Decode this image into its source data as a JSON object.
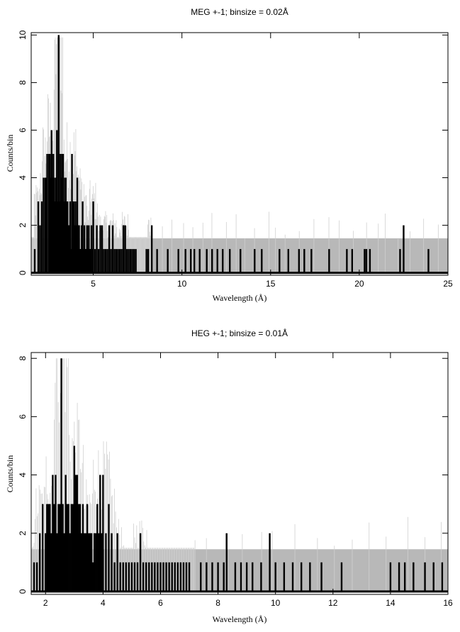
{
  "chart_data": [
    {
      "type": "line",
      "title": "MEG +-1; binsize = 0.02Å",
      "xlabel": "Wavelength (Å)",
      "ylabel": "Counts/bin",
      "xlim": [
        1.5,
        25
      ],
      "ylim": [
        -0.1,
        10.1
      ],
      "xticks": [
        5,
        10,
        15,
        20,
        25
      ],
      "yticks": [
        0,
        2,
        4,
        6,
        8,
        10
      ],
      "grid": false,
      "colors": {
        "background_band": "#b8b8b8",
        "model": "#d0d0d0",
        "data": "#000000"
      },
      "series": [
        {
          "role": "background-band",
          "band": [
            0,
            1.45
          ]
        },
        {
          "role": "data-spikes",
          "x": [
            1.7,
            1.9,
            2.0,
            2.1,
            2.2,
            2.3,
            2.35,
            2.4,
            2.5,
            2.55,
            2.6,
            2.65,
            2.7,
            2.75,
            2.8,
            2.85,
            2.9,
            2.95,
            3.0,
            3.05,
            3.1,
            3.15,
            3.2,
            3.25,
            3.3,
            3.35,
            3.4,
            3.45,
            3.5,
            3.55,
            3.6,
            3.65,
            3.7,
            3.75,
            3.8,
            3.85,
            3.9,
            3.95,
            4.0,
            4.05,
            4.1,
            4.15,
            4.2,
            4.25,
            4.3,
            4.35,
            4.4,
            4.45,
            4.5,
            4.55,
            4.6,
            4.65,
            4.7,
            4.75,
            4.8,
            4.85,
            4.9,
            4.95,
            5.0,
            5.1,
            5.2,
            5.3,
            5.4,
            5.5,
            5.6,
            5.7,
            5.8,
            5.9,
            6.0,
            6.1,
            6.2,
            6.3,
            6.4,
            6.5,
            6.6,
            6.7,
            6.8,
            6.9,
            7.0,
            7.1,
            7.2,
            7.3,
            7.4,
            8.0,
            8.1,
            8.3,
            8.6,
            9.2,
            9.8,
            10.2,
            10.5,
            10.7,
            11.0,
            11.4,
            11.7,
            12.0,
            12.3,
            12.7,
            13.3,
            14.1,
            14.5,
            15.5,
            16.0,
            16.6,
            16.9,
            17.3,
            18.3,
            19.3,
            19.6,
            20.3,
            20.4,
            20.6,
            22.3,
            22.5,
            23.9
          ],
          "values": [
            1,
            3,
            2,
            3,
            4,
            4,
            4,
            5,
            5,
            5,
            4,
            6,
            4,
            5,
            4,
            3,
            4,
            6,
            3,
            10,
            3,
            5,
            4,
            5,
            5,
            3,
            4,
            4,
            3,
            3,
            2,
            2,
            3,
            1,
            5,
            3,
            3,
            2,
            3,
            2,
            4,
            2,
            2,
            1,
            1,
            2,
            3,
            1,
            2,
            1,
            1,
            2,
            1,
            2,
            1,
            1,
            2,
            1,
            3,
            1,
            2,
            1,
            2,
            2,
            1,
            1,
            1,
            2,
            1,
            2,
            1,
            1,
            1,
            1,
            1,
            2,
            2,
            1,
            1,
            1,
            1,
            1,
            1,
            1,
            1,
            2,
            1,
            1,
            1,
            1,
            1,
            1,
            1,
            1,
            1,
            1,
            1,
            1,
            1,
            1,
            1,
            1,
            1,
            1,
            1,
            1,
            1,
            1,
            1,
            1,
            1,
            1,
            1,
            2,
            1
          ]
        }
      ]
    },
    {
      "type": "line",
      "title": "HEG +-1; binsize = 0.01Å",
      "xlabel": "Wavelength (Å)",
      "ylabel": "Counts/bin",
      "xlim": [
        1.5,
        16
      ],
      "ylim": [
        -0.1,
        8.2
      ],
      "xticks": [
        2,
        4,
        6,
        8,
        10,
        12,
        14,
        16
      ],
      "yticks": [
        0,
        2,
        4,
        6,
        8
      ],
      "grid": false,
      "colors": {
        "background_band": "#b8b8b8",
        "model": "#d0d0d0",
        "data": "#000000"
      },
      "series": [
        {
          "role": "background-band",
          "band": [
            0,
            1.45
          ]
        },
        {
          "role": "data-spikes",
          "x": [
            1.6,
            1.7,
            1.8,
            1.9,
            2.0,
            2.05,
            2.1,
            2.15,
            2.2,
            2.25,
            2.3,
            2.35,
            2.4,
            2.45,
            2.5,
            2.55,
            2.6,
            2.65,
            2.7,
            2.75,
            2.8,
            2.85,
            2.9,
            2.95,
            3.0,
            3.05,
            3.1,
            3.15,
            3.2,
            3.25,
            3.3,
            3.35,
            3.4,
            3.45,
            3.5,
            3.55,
            3.6,
            3.65,
            3.7,
            3.75,
            3.8,
            3.85,
            3.9,
            3.95,
            4.0,
            4.1,
            4.2,
            4.3,
            4.4,
            4.5,
            4.6,
            4.7,
            4.8,
            4.9,
            5.0,
            5.1,
            5.2,
            5.3,
            5.4,
            5.5,
            5.6,
            5.7,
            5.8,
            5.9,
            6.0,
            6.1,
            6.2,
            6.3,
            6.4,
            6.5,
            6.6,
            6.7,
            6.8,
            6.9,
            7.0,
            7.4,
            7.6,
            7.8,
            8.0,
            8.2,
            8.3,
            8.6,
            8.8,
            9.0,
            9.2,
            9.5,
            9.8,
            10.0,
            10.3,
            10.6,
            10.9,
            11.2,
            11.6,
            12.3,
            14.0,
            14.3,
            14.5,
            14.8,
            15.2,
            15.5,
            15.8
          ],
          "values": [
            1,
            1,
            2,
            3,
            2,
            3,
            3,
            3,
            2,
            4,
            3,
            4,
            2,
            3,
            3,
            8,
            3,
            2,
            4,
            3,
            3,
            2,
            3,
            3,
            5,
            4,
            4,
            3,
            3,
            2,
            3,
            2,
            2,
            3,
            2,
            2,
            2,
            1,
            2,
            2,
            3,
            2,
            4,
            2,
            4,
            2,
            3,
            2,
            1,
            2,
            1,
            1,
            1,
            1,
            1,
            1,
            1,
            2,
            1,
            1,
            1,
            1,
            1,
            1,
            1,
            1,
            1,
            1,
            1,
            1,
            1,
            1,
            1,
            1,
            1,
            1,
            1,
            1,
            1,
            1,
            2,
            1,
            1,
            1,
            1,
            1,
            2,
            1,
            1,
            1,
            1,
            1,
            1,
            1,
            1,
            1,
            1,
            1,
            1,
            1,
            1
          ]
        }
      ]
    }
  ]
}
